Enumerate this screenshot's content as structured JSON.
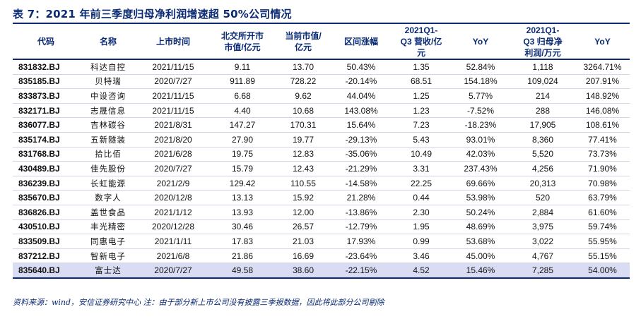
{
  "title": "表 7：2021 年前三季度归母净利润增速超 50%公司情况",
  "columns": [
    "代码",
    "名称",
    "上市时间",
    "北交所开市\n市值/亿元",
    "当前市值/\n亿元",
    "区间涨幅",
    "2021Q1-\nQ3 营收/亿\n元",
    "YoY",
    "2021Q1-\nQ3 归母净\n利润/万元",
    "YoY"
  ],
  "rows": [
    [
      "831832.BJ",
      "科达自控",
      "2021/11/15",
      "9.11",
      "13.70",
      "50.43%",
      "1.35",
      "52.84%",
      "1,118",
      "3264.71%"
    ],
    [
      "835185.BJ",
      "贝特瑞",
      "2020/7/27",
      "911.89",
      "728.22",
      "-20.14%",
      "68.51",
      "154.18%",
      "109,024",
      "207.91%"
    ],
    [
      "833873.BJ",
      "中设咨询",
      "2021/11/15",
      "6.68",
      "9.62",
      "44.04%",
      "1.25",
      "5.77%",
      "214",
      "148.92%"
    ],
    [
      "832171.BJ",
      "志晟信息",
      "2021/11/15",
      "4.40",
      "10.68",
      "143.08%",
      "1.23",
      "-7.52%",
      "288",
      "146.08%"
    ],
    [
      "836077.BJ",
      "吉林碳谷",
      "2021/8/31",
      "147.27",
      "170.31",
      "15.64%",
      "7.23",
      "-18.23%",
      "17,905",
      "108.61%"
    ],
    [
      "835174.BJ",
      "五新隧装",
      "2021/8/20",
      "27.90",
      "19.77",
      "-29.13%",
      "5.43",
      "93.01%",
      "8,360",
      "77.41%"
    ],
    [
      "831768.BJ",
      "拾比佰",
      "2021/6/28",
      "19.75",
      "12.83",
      "-35.06%",
      "10.49",
      "42.03%",
      "5,520",
      "73.73%"
    ],
    [
      "430489.BJ",
      "佳先股份",
      "2020/7/27",
      "15.79",
      "12.43",
      "-21.29%",
      "3.31",
      "237.43%",
      "4,256",
      "71.90%"
    ],
    [
      "836239.BJ",
      "长虹能源",
      "2021/2/9",
      "129.42",
      "110.55",
      "-14.58%",
      "22.25",
      "69.66%",
      "20,313",
      "70.98%"
    ],
    [
      "835670.BJ",
      "数字人",
      "2020/12/8",
      "13.13",
      "15.92",
      "21.28%",
      "0.44",
      "53.98%",
      "520",
      "63.79%"
    ],
    [
      "836826.BJ",
      "盖世食品",
      "2021/1/12",
      "13.93",
      "12.00",
      "-13.86%",
      "2.30",
      "50.24%",
      "2,884",
      "61.60%"
    ],
    [
      "430510.BJ",
      "丰光精密",
      "2020/12/28",
      "30.46",
      "26.57",
      "-12.79%",
      "1.95",
      "48.69%",
      "3,975",
      "59.74%"
    ],
    [
      "833509.BJ",
      "同惠电子",
      "2021/1/11",
      "17.83",
      "21.03",
      "17.93%",
      "0.99",
      "53.68%",
      "3,022",
      "55.95%"
    ],
    [
      "837212.BJ",
      "智新电子",
      "2021/6/8",
      "21.86",
      "16.69",
      "-23.64%",
      "3.46",
      "45.00%",
      "4,767",
      "55.15%"
    ],
    [
      "835640.BJ",
      "富士达",
      "2020/7/27",
      "49.58",
      "38.60",
      "-22.15%",
      "4.52",
      "15.46%",
      "7,285",
      "54.00%"
    ]
  ],
  "highlight_row": 14,
  "source": "资料来源：wind，安信证券研究中心  注：由于部分新上市公司没有披露三季报数据，因此将此部分公司剔除",
  "colors": {
    "title": "#0a2a73",
    "rule": "#0a2a73",
    "highlight": "#d9dcf3"
  }
}
